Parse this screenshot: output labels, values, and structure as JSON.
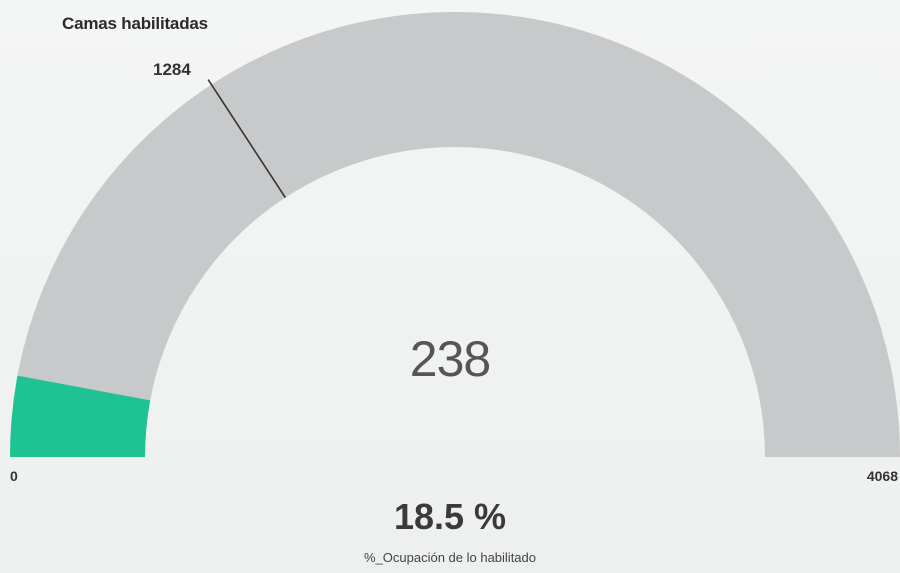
{
  "gauge": {
    "title": "Camas habilitadas",
    "min_label": "0",
    "max_label": "4068",
    "target_label": "1284",
    "value_label": "238"
  },
  "kpi": {
    "value": "18.5 %",
    "label": "%_Ocupación de lo habilitado"
  },
  "chart_data": {
    "type": "gauge",
    "title": "Camas habilitadas",
    "min": 0,
    "max": 4068,
    "value": 238,
    "target": 1284,
    "colors": {
      "fill": "#1fc393",
      "track": "#c8c9ca",
      "target_line": "#333333"
    }
  }
}
